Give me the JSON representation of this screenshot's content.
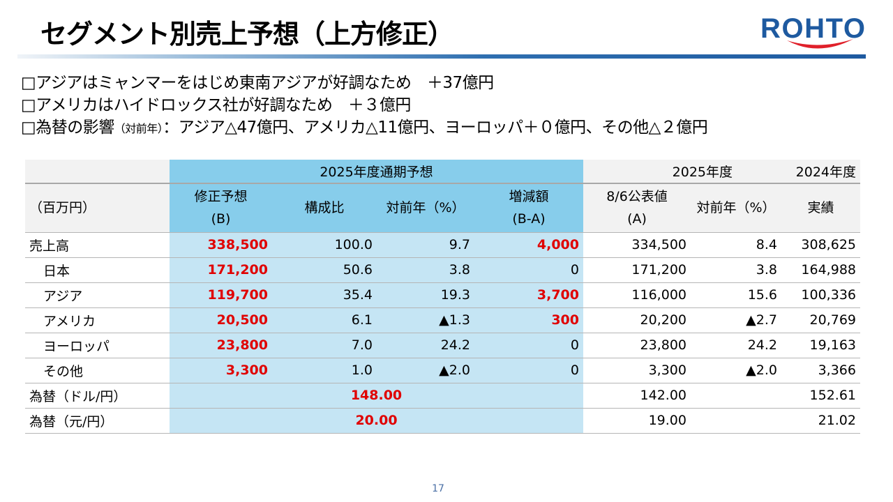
{
  "title": "セグメント別売上予想（上方修正）",
  "logo": "ROHTO",
  "bullets": [
    {
      "text": "□アジアはミャンマーをはじめ東南アジアが好調なため　＋37億円"
    },
    {
      "text": "□アメリカはハイドロックス社が好調なため　＋３億円"
    },
    {
      "pre": "□為替の影響",
      "small": "（対前年）",
      "post": "：アジア△47億円、アメリカ△11億円、ヨーロッパ＋０億円、その他△２億円"
    }
  ],
  "table": {
    "group_headers": {
      "forecast": "2025年度通期予想",
      "fy2025": "2025年度",
      "fy2024": "2024年度"
    },
    "col_headers": {
      "unit": "（百万円）",
      "revised_1": "修正予想",
      "revised_2": "(B)",
      "ratio": "構成比",
      "yoy": "対前年（%）",
      "diff_1": "増減額",
      "diff_2": "(B-A)",
      "announced_1": "8/6公表値",
      "announced_2": "(A)",
      "yoy2": "対前年（%）",
      "actual": "実績"
    },
    "rows": [
      {
        "label": "売上高",
        "b": "338,500",
        "ratio": "100.0",
        "yoy": "9.7",
        "diff": "4,000",
        "a": "334,500",
        "yoy2": "8.4",
        "actual": "308,625"
      },
      {
        "label": "日本",
        "b": "171,200",
        "ratio": "50.6",
        "yoy": "3.8",
        "diff": "0",
        "a": "171,200",
        "yoy2": "3.8",
        "actual": "164,988"
      },
      {
        "label": "アジア",
        "b": "119,700",
        "ratio": "35.4",
        "yoy": "19.3",
        "diff": "3,700",
        "a": "116,000",
        "yoy2": "15.6",
        "actual": "100,336"
      },
      {
        "label": "アメリカ",
        "b": "20,500",
        "ratio": "6.1",
        "yoy": "▲1.3",
        "diff": "300",
        "a": "20,200",
        "yoy2": "▲2.7",
        "actual": "20,769"
      },
      {
        "label": "ヨーロッパ",
        "b": "23,800",
        "ratio": "7.0",
        "yoy": "24.2",
        "diff": "0",
        "a": "23,800",
        "yoy2": "24.2",
        "actual": "19,163"
      },
      {
        "label": "その他",
        "b": "3,300",
        "ratio": "1.0",
        "yoy": "▲2.0",
        "diff": "0",
        "a": "3,300",
        "yoy2": "▲2.0",
        "actual": "3,366"
      }
    ],
    "fx": [
      {
        "label": "為替（ドル/円）",
        "b": "148.00",
        "a": "142.00",
        "actual": "152.61"
      },
      {
        "label": "為替（元/円）",
        "b": "20.00",
        "a": "19.00",
        "actual": "21.02"
      }
    ]
  },
  "page_number": "17",
  "colors": {
    "header_blue": "#87cdeb",
    "body_blue": "#c5e5f4",
    "highlight_red": "#e00000",
    "logo_blue": "#1e5aa0",
    "logo_red": "#e0202a"
  }
}
